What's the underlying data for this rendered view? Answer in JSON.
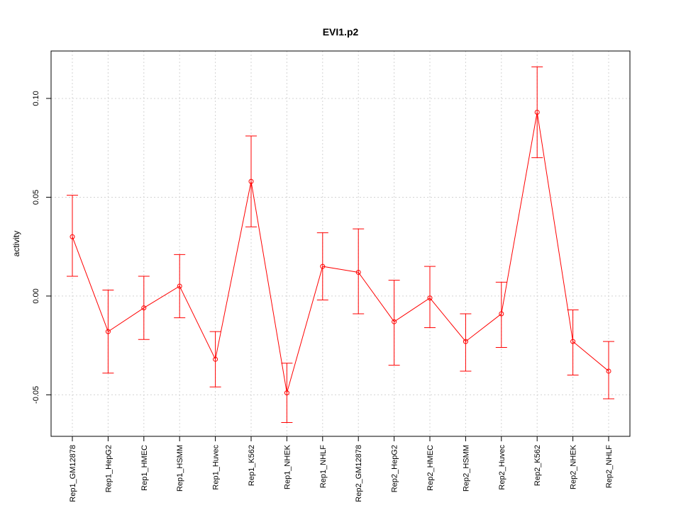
{
  "chart_data": {
    "type": "line",
    "title": "EVI1.p2",
    "xlabel": "",
    "ylabel": "activity",
    "ylim": [
      -0.071,
      0.124
    ],
    "yticks": [
      -0.05,
      0.0,
      0.05,
      0.1
    ],
    "ytick_labels": [
      "-0.05",
      "0.00",
      "0.05",
      "0.10"
    ],
    "grid": true,
    "color": "#ff0000",
    "categories": [
      "Rep1_GM12878",
      "Rep1_HepG2",
      "Rep1_HMEC",
      "Rep1_HSMM",
      "Rep1_Huvec",
      "Rep1_K562",
      "Rep1_NHEK",
      "Rep1_NHLF",
      "Rep2_GM12878",
      "Rep2_HepG2",
      "Rep2_HMEC",
      "Rep2_HSMM",
      "Rep2_Huvec",
      "Rep2_K562",
      "Rep2_NHEK",
      "Rep2_NHLF"
    ],
    "values": [
      0.03,
      -0.018,
      -0.006,
      0.005,
      -0.032,
      0.058,
      -0.049,
      0.015,
      0.012,
      -0.013,
      -0.001,
      -0.023,
      -0.009,
      0.093,
      -0.023,
      -0.038
    ],
    "err_upper": [
      0.051,
      0.003,
      0.01,
      0.021,
      -0.018,
      0.081,
      -0.034,
      0.032,
      0.034,
      0.008,
      0.015,
      -0.009,
      0.007,
      0.116,
      -0.007,
      -0.023
    ],
    "err_lower": [
      0.01,
      -0.039,
      -0.022,
      -0.011,
      -0.046,
      0.035,
      -0.064,
      -0.002,
      -0.009,
      -0.035,
      -0.016,
      -0.038,
      -0.026,
      0.07,
      -0.04,
      -0.052
    ]
  }
}
